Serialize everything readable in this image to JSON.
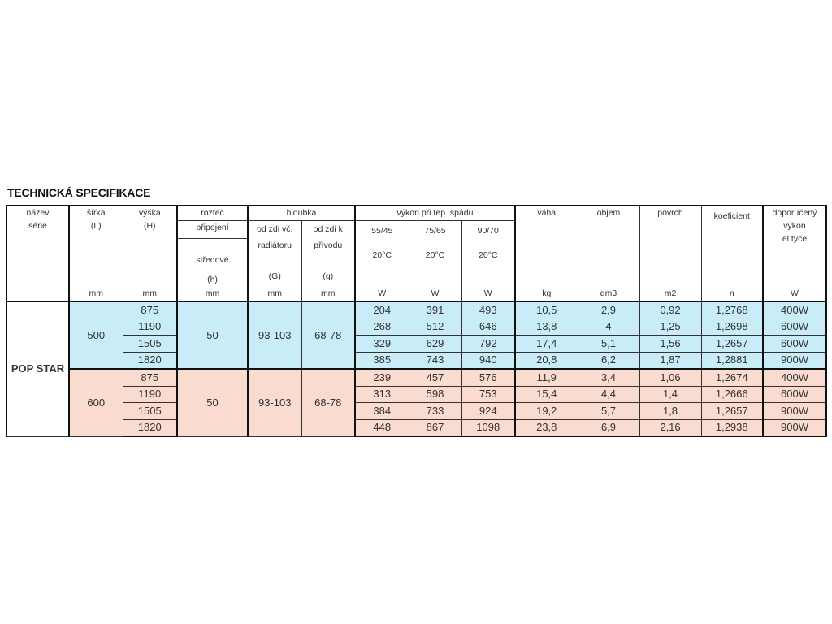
{
  "title": "TECHNICKÁ SPECIFIKACE",
  "headers": {
    "nazev": [
      "název",
      "série"
    ],
    "sirka": [
      "šířka",
      "(L)"
    ],
    "vyska": [
      "výška",
      "(H)"
    ],
    "roztec": "rozteč",
    "pripojeni": "připojení",
    "stredove": [
      "středové",
      "(h)"
    ],
    "hloubka": "hloubka",
    "g1": [
      "od zdi  vč.",
      "radiátoru",
      "(G)"
    ],
    "g2": [
      "od zdi  k",
      "přívodu",
      "(g)"
    ],
    "vykon": "výkon při tep.  spádu",
    "spad": [
      [
        "55/45",
        "20°C"
      ],
      [
        "75/65",
        "20°C"
      ],
      [
        "90/70",
        "20°C"
      ]
    ],
    "vaha": "váha",
    "objem": "objem",
    "povrch": "povrch",
    "koeficient": "koeficient",
    "doporuceny": [
      "doporučený",
      "výkon",
      "el.tyče"
    ],
    "units": [
      "mm",
      "mm",
      "mm",
      "mm",
      "mm",
      "W",
      "W",
      "W",
      "kg",
      "dm3",
      "m2",
      "n",
      "W"
    ]
  },
  "series_name": "POP STAR",
  "groups": [
    {
      "color": "#c8ecf8",
      "sirka": "500",
      "roztec": "50",
      "G": "93-103",
      "g": "68-78",
      "rows": [
        [
          "875",
          "204",
          "391",
          "493",
          "10,5",
          "2,9",
          "0,92",
          "1,2768",
          "400W"
        ],
        [
          "1190",
          "268",
          "512",
          "646",
          "13,8",
          "4",
          "1,25",
          "1,2698",
          "600W"
        ],
        [
          "1505",
          "329",
          "629",
          "792",
          "17,4",
          "5,1",
          "1,56",
          "1,2657",
          "600W"
        ],
        [
          "1820",
          "385",
          "743",
          "940",
          "20,8",
          "6,2",
          "1,87",
          "1,2881",
          "900W"
        ]
      ]
    },
    {
      "color": "#fadbd0",
      "sirka": "600",
      "roztec": "50",
      "G": "93-103",
      "g": "68-78",
      "rows": [
        [
          "875",
          "239",
          "457",
          "576",
          "11,9",
          "3,4",
          "1,06",
          "1,2674",
          "400W"
        ],
        [
          "1190",
          "313",
          "598",
          "753",
          "15,4",
          "4,4",
          "1,4",
          "1,2666",
          "600W"
        ],
        [
          "1505",
          "384",
          "733",
          "924",
          "19,2",
          "5,7",
          "1,8",
          "1,2657",
          "900W"
        ],
        [
          "1820",
          "448",
          "867",
          "1098",
          "23,8",
          "6,9",
          "2,16",
          "1,2938",
          "900W"
        ]
      ]
    }
  ]
}
